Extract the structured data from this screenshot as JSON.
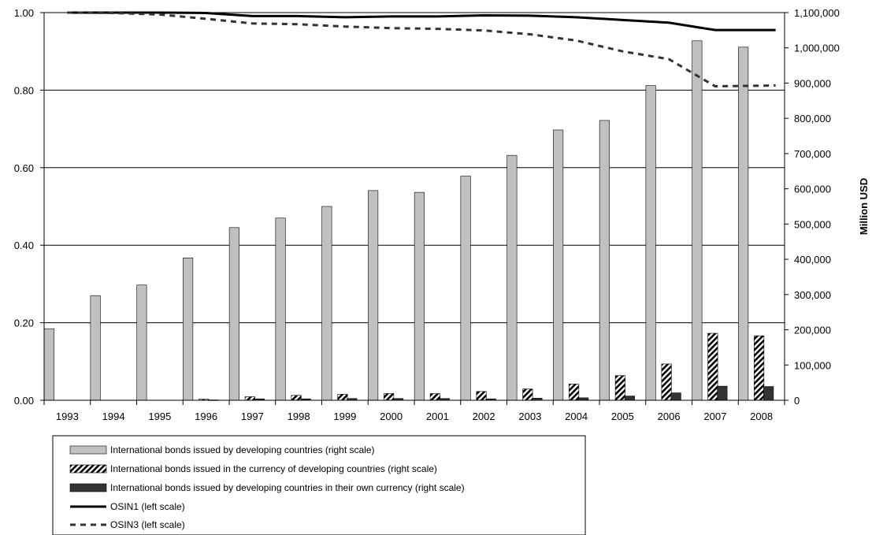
{
  "chart_data": {
    "type": "bar",
    "categories": [
      "1993",
      "1994",
      "1995",
      "1996",
      "1997",
      "1998",
      "1999",
      "2000",
      "2001",
      "2002",
      "2003",
      "2004",
      "2005",
      "2006",
      "2007",
      "2008"
    ],
    "left_axis": {
      "label": "",
      "min": 0,
      "max": 1.0,
      "step": 0.2,
      "tick_labels": [
        "0.00",
        "0.20",
        "0.40",
        "0.60",
        "0.80",
        "1.00"
      ]
    },
    "right_axis": {
      "label": "Million USD",
      "min": 0,
      "max": 1100000,
      "step": 100000,
      "tick_labels": [
        "0",
        "100,000",
        "200,000",
        "300,000",
        "400,000",
        "500,000",
        "600,000",
        "700,000",
        "800,000",
        "900,000",
        "1,000,000",
        "1,100,000"
      ]
    },
    "grid": "horizontal",
    "legend_position": "bottom-left",
    "bar_series": [
      {
        "name": "International bonds issued by developing countries (right scale)",
        "axis": "right",
        "style": "solid",
        "color": "#c0c0c0",
        "values": [
          203000,
          297000,
          327000,
          404000,
          490000,
          517000,
          550000,
          595000,
          590000,
          636000,
          695000,
          767000,
          794000,
          893000,
          1020000,
          1002000
        ]
      },
      {
        "name": "International bonds issued in the currency of developing countries (right scale)",
        "axis": "right",
        "style": "hatched",
        "color": "#000000",
        "values": [
          0,
          0,
          0,
          3000,
          10000,
          14000,
          17000,
          19000,
          19000,
          25000,
          32000,
          46000,
          70000,
          103000,
          190000,
          183000
        ]
      },
      {
        "name": "International bonds issued by developing countries in their own currency (right scale)",
        "axis": "right",
        "style": "solid",
        "color": "#333333",
        "values": [
          0,
          0,
          0,
          1000,
          4000,
          4000,
          5000,
          5000,
          5000,
          4000,
          6000,
          7000,
          12000,
          21000,
          40000,
          39000
        ]
      }
    ],
    "line_series": [
      {
        "name": "OSIN1 (left scale)",
        "axis": "left",
        "style": "solid",
        "color": "#000000",
        "values": [
          1.0,
          1.0,
          1.0,
          0.999,
          0.991,
          0.991,
          0.988,
          0.99,
          0.99,
          0.993,
          0.992,
          0.988,
          0.981,
          0.974,
          0.955,
          0.955
        ]
      },
      {
        "name": "OSIN3 (left scale)",
        "axis": "left",
        "style": "dashed",
        "color": "#333333",
        "values": [
          1.0,
          0.999,
          0.995,
          0.984,
          0.972,
          0.97,
          0.964,
          0.96,
          0.958,
          0.954,
          0.944,
          0.928,
          0.9,
          0.88,
          0.81,
          0.812
        ]
      }
    ]
  }
}
